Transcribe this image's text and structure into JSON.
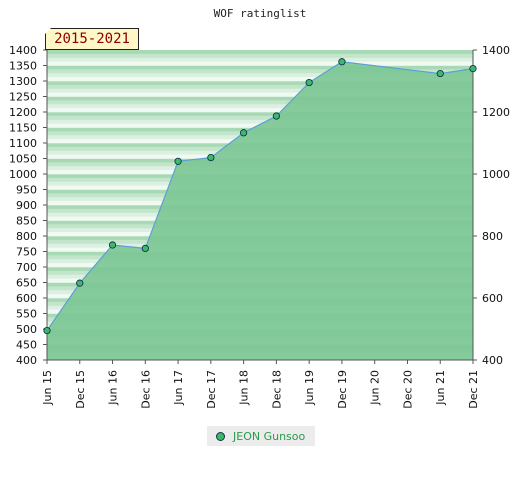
{
  "chart_data": {
    "type": "area",
    "title": "WOF ratinglist",
    "badge": "2015-2021",
    "categories": [
      "Jun 15",
      "Dec 15",
      "Jun 16",
      "Dec 16",
      "Jun 17",
      "Dec 17",
      "Jun 18",
      "Dec 18",
      "Jun 19",
      "Dec 19",
      "Jun 20",
      "Dec 20",
      "Jun 21",
      "Dec 21"
    ],
    "series": [
      {
        "name": "JEON Gunsoo",
        "points": [
          [
            0,
            495
          ],
          [
            1,
            648
          ],
          [
            2,
            771
          ],
          [
            3,
            760
          ],
          [
            4,
            1041
          ],
          [
            5,
            1053
          ],
          [
            6,
            1133
          ],
          [
            7,
            1187
          ],
          [
            8,
            1295
          ],
          [
            9,
            1362
          ],
          [
            12,
            1324
          ],
          [
            13,
            1340
          ]
        ]
      }
    ],
    "ylim": [
      400,
      1400
    ],
    "left_ticks": [
      1400,
      1350,
      1300,
      1250,
      1200,
      1150,
      1100,
      1050,
      1000,
      950,
      900,
      850,
      800,
      750,
      700,
      650,
      600,
      550,
      500,
      450,
      400
    ],
    "right_ticks": [
      1400,
      1200,
      1000,
      800,
      600,
      400
    ],
    "colors": {
      "fill": "#7dc795",
      "line": "#5a9fd6",
      "marker": "#3bb86a",
      "marker_stroke": "#124"
    },
    "legend": "bottom-center"
  }
}
